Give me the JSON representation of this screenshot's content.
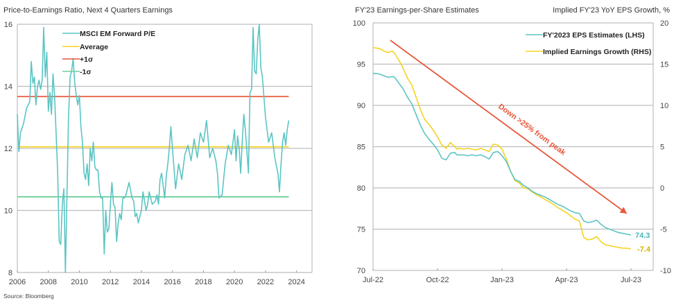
{
  "source": "Source: Bloomberg",
  "chart_data": [
    {
      "type": "line",
      "title": "Price-to-Earnings Ratio, Next 4 Quarters Earnings",
      "xlabel": "",
      "ylabel": "",
      "xlim": [
        2006,
        2025
      ],
      "ylim": [
        8,
        16
      ],
      "grid": true,
      "legend_position": "top-left",
      "x_ticks": [
        "2006",
        "2008",
        "2010",
        "2012",
        "2014",
        "2016",
        "2018",
        "2020",
        "2022",
        "2024"
      ],
      "y_ticks": [
        "8",
        "10",
        "12",
        "14",
        "16"
      ],
      "colors": {
        "pe": "#5BC4C4",
        "average": "#F5D21F",
        "plus1": "#E8573A",
        "minus1": "#6CCF9A"
      },
      "legend": [
        "MSCI EM Forward P/E",
        "Average",
        "+1σ",
        "-1σ"
      ],
      "reference_lines": [
        {
          "name": "Average",
          "value": 12.05,
          "x_end": 2023.5
        },
        {
          "name": "+1σ",
          "value": 13.67,
          "x_end": 2023.5
        },
        {
          "name": "-1σ",
          "value": 10.44,
          "x_end": 2023.5
        }
      ],
      "series": [
        {
          "name": "MSCI EM Forward P/E",
          "x": [
            2006.0,
            2006.1,
            2006.2,
            2006.4,
            2006.6,
            2006.8,
            2006.9,
            2007.0,
            2007.1,
            2007.2,
            2007.3,
            2007.4,
            2007.5,
            2007.6,
            2007.7,
            2007.8,
            2007.9,
            2008.0,
            2008.1,
            2008.2,
            2008.3,
            2008.4,
            2008.5,
            2008.6,
            2008.7,
            2008.8,
            2008.9,
            2009.0,
            2009.05,
            2009.1,
            2009.2,
            2009.3,
            2009.4,
            2009.5,
            2009.6,
            2009.7,
            2009.8,
            2009.9,
            2010.0,
            2010.1,
            2010.2,
            2010.3,
            2010.4,
            2010.5,
            2010.6,
            2010.7,
            2010.8,
            2010.9,
            2011.0,
            2011.1,
            2011.2,
            2011.3,
            2011.4,
            2011.5,
            2011.6,
            2011.7,
            2011.8,
            2011.9,
            2012.0,
            2012.1,
            2012.2,
            2012.3,
            2012.4,
            2012.5,
            2012.6,
            2012.7,
            2012.8,
            2012.9,
            2013.0,
            2013.2,
            2013.4,
            2013.5,
            2013.6,
            2013.7,
            2013.8,
            2014.0,
            2014.1,
            2014.2,
            2014.3,
            2014.4,
            2014.5,
            2014.7,
            2014.9,
            2015.0,
            2015.1,
            2015.2,
            2015.3,
            2015.4,
            2015.5,
            2015.6,
            2015.7,
            2015.8,
            2015.9,
            2016.0,
            2016.2,
            2016.4,
            2016.6,
            2016.8,
            2017.0,
            2017.2,
            2017.4,
            2017.6,
            2017.8,
            2018.0,
            2018.2,
            2018.4,
            2018.6,
            2018.8,
            2018.9,
            2019.0,
            2019.2,
            2019.4,
            2019.6,
            2019.8,
            2020.0,
            2020.1,
            2020.2,
            2020.3,
            2020.4,
            2020.5,
            2020.6,
            2020.7,
            2020.8,
            2020.9,
            2021.0,
            2021.1,
            2021.2,
            2021.3,
            2021.4,
            2021.5,
            2021.6,
            2021.7,
            2021.8,
            2022.0,
            2022.2,
            2022.4,
            2022.6,
            2022.8,
            2022.9,
            2023.0,
            2023.1,
            2023.2,
            2023.3,
            2023.4,
            2023.5
          ],
          "values": [
            13.1,
            11.9,
            12.5,
            12.8,
            13.3,
            13.5,
            14.8,
            14.1,
            14.3,
            13.4,
            14.0,
            14.2,
            13.9,
            14.2,
            15.9,
            14.3,
            15.1,
            13.2,
            13.8,
            13.1,
            14.4,
            13.7,
            12.5,
            11.2,
            9.0,
            8.9,
            10.2,
            10.7,
            9.5,
            8.0,
            10.5,
            13.0,
            14.3,
            14.5,
            14.9,
            14.1,
            13.7,
            13.4,
            13.7,
            12.7,
            12.2,
            11.2,
            11.0,
            11.5,
            10.8,
            12.0,
            11.6,
            12.2,
            11.4,
            11.3,
            11.3,
            10.6,
            10.4,
            10.4,
            8.6,
            10.0,
            9.3,
            9.4,
            10.2,
            10.9,
            10.2,
            10.1,
            9.0,
            9.6,
            9.9,
            9.7,
            10.4,
            10.4,
            10.5,
            10.9,
            10.4,
            10.3,
            9.8,
            9.9,
            9.6,
            10.0,
            10.6,
            10.3,
            10.0,
            10.2,
            10.6,
            10.2,
            10.3,
            10.5,
            10.2,
            11.0,
            11.2,
            10.8,
            10.4,
            11.1,
            11.5,
            12.0,
            12.7,
            12.0,
            10.7,
            11.5,
            11.0,
            11.8,
            12.1,
            11.6,
            12.3,
            11.7,
            12.5,
            12.2,
            12.9,
            11.7,
            12.0,
            11.6,
            11.2,
            10.4,
            10.5,
            11.5,
            12.1,
            11.8,
            12.6,
            11.6,
            12.4,
            12.0,
            11.2,
            12.2,
            13.1,
            12.6,
            11.9,
            11.2,
            13.8,
            13.9,
            15.9,
            14.5,
            14.4,
            15.5,
            16.2,
            14.6,
            14.3,
            13.0,
            12.2,
            12.5,
            11.7,
            11.2,
            10.6,
            11.5,
            12.2,
            12.5,
            12.1,
            12.6,
            12.9
          ]
        }
      ]
    },
    {
      "type": "line",
      "title": "FY'23 Earnings-per-Share Estimates",
      "right_title": "Implied FY'23 YoY EPS Growth, %",
      "xlabel": "",
      "ylabel": "",
      "x_ticks": [
        "Jul-22",
        "Oct-22",
        "Jan-23",
        "Apr-23",
        "Jul-23"
      ],
      "x_tick_months": [
        0,
        3,
        6,
        9,
        12
      ],
      "xlim": [
        0,
        12.8
      ],
      "ylim": [
        70,
        100
      ],
      "y2lim": [
        -10,
        20
      ],
      "y_ticks": [
        "70",
        "75",
        "80",
        "85",
        "90",
        "95",
        "100"
      ],
      "y2_ticks": [
        "-10",
        "-5",
        "0",
        "5",
        "10",
        "15",
        "20"
      ],
      "grid": true,
      "legend_position": "top-right",
      "legend": [
        "FY'2023 EPS Estimates (LHS)",
        "Implied Earnings Growth (RHS)"
      ],
      "colors": {
        "eps": "#5BC4C4",
        "growth": "#F5D21F",
        "arrow": "#E8573A"
      },
      "annotation": {
        "text": "Down >25% from peak",
        "from": [
          0.8,
          97.9
        ],
        "to": [
          11.8,
          76.9
        ]
      },
      "end_labels": [
        {
          "series": "FY'2023 EPS Estimates (LHS)",
          "text": "74.3"
        },
        {
          "series": "Implied Earnings Growth (RHS)",
          "text": "-7.4"
        }
      ],
      "series": [
        {
          "name": "FY'2023 EPS Estimates (LHS)",
          "axis": "left",
          "x": [
            0,
            0.3,
            0.5,
            0.7,
            0.9,
            1.0,
            1.2,
            1.4,
            1.6,
            1.8,
            2.0,
            2.2,
            2.4,
            2.6,
            2.8,
            3.0,
            3.2,
            3.4,
            3.6,
            3.8,
            3.9,
            4.0,
            4.2,
            4.4,
            4.6,
            4.8,
            5.0,
            5.2,
            5.4,
            5.6,
            5.8,
            6.0,
            6.2,
            6.4,
            6.6,
            6.8,
            7.0,
            7.2,
            7.4,
            7.6,
            7.8,
            8.0,
            8.2,
            8.4,
            8.6,
            8.8,
            9.0,
            9.2,
            9.4,
            9.6,
            9.8,
            10.0,
            10.2,
            10.4,
            10.6,
            10.8,
            11.0,
            11.2,
            11.4,
            11.6,
            11.8,
            12.0
          ],
          "values": [
            93.9,
            93.8,
            93.6,
            93.4,
            93.5,
            93.4,
            92.7,
            92.0,
            91.0,
            90.2,
            88.9,
            87.6,
            86.6,
            85.9,
            85.3,
            84.6,
            83.6,
            83.4,
            84.2,
            84.3,
            84.0,
            84.0,
            84.0,
            83.9,
            84.0,
            83.9,
            84.0,
            83.8,
            83.5,
            84.3,
            84.4,
            83.9,
            83.2,
            82.0,
            81.0,
            80.8,
            80.3,
            80.0,
            79.6,
            79.3,
            79.1,
            78.9,
            78.6,
            78.3,
            78.0,
            77.8,
            77.5,
            77.2,
            77.0,
            76.9,
            76.0,
            75.8,
            75.9,
            76.1,
            75.6,
            75.2,
            75.0,
            74.8,
            74.6,
            74.5,
            74.4,
            74.3
          ]
        },
        {
          "name": "Implied Earnings Growth (RHS)",
          "axis": "right",
          "x": [
            0,
            0.3,
            0.5,
            0.7,
            0.9,
            1.0,
            1.2,
            1.4,
            1.6,
            1.8,
            2.0,
            2.2,
            2.4,
            2.6,
            2.8,
            3.0,
            3.2,
            3.4,
            3.6,
            3.8,
            3.9,
            4.0,
            4.2,
            4.4,
            4.6,
            4.8,
            5.0,
            5.2,
            5.4,
            5.6,
            5.8,
            6.0,
            6.2,
            6.4,
            6.6,
            6.8,
            7.0,
            7.2,
            7.4,
            7.6,
            7.8,
            8.0,
            8.2,
            8.4,
            8.6,
            8.8,
            9.0,
            9.2,
            9.4,
            9.6,
            9.8,
            10.0,
            10.2,
            10.4,
            10.6,
            10.8,
            11.0,
            11.2,
            11.4,
            11.6,
            11.8,
            12.0
          ],
          "values": [
            17.0,
            16.9,
            16.6,
            16.4,
            16.6,
            16.3,
            15.5,
            14.5,
            13.3,
            12.5,
            11.0,
            9.5,
            8.3,
            7.7,
            7.0,
            6.2,
            5.2,
            4.8,
            5.5,
            5.0,
            4.7,
            4.8,
            4.7,
            4.8,
            4.7,
            4.6,
            4.8,
            4.6,
            4.4,
            5.3,
            5.2,
            4.7,
            3.5,
            2.0,
            0.9,
            0.6,
            0.0,
            -0.1,
            -0.5,
            -0.8,
            -1.1,
            -1.4,
            -1.7,
            -2.0,
            -2.4,
            -2.7,
            -3.0,
            -3.4,
            -3.8,
            -4.0,
            -6.0,
            -6.3,
            -6.2,
            -5.9,
            -6.5,
            -6.9,
            -7.0,
            -7.1,
            -7.2,
            -7.3,
            -7.3,
            -7.4
          ]
        }
      ]
    }
  ]
}
